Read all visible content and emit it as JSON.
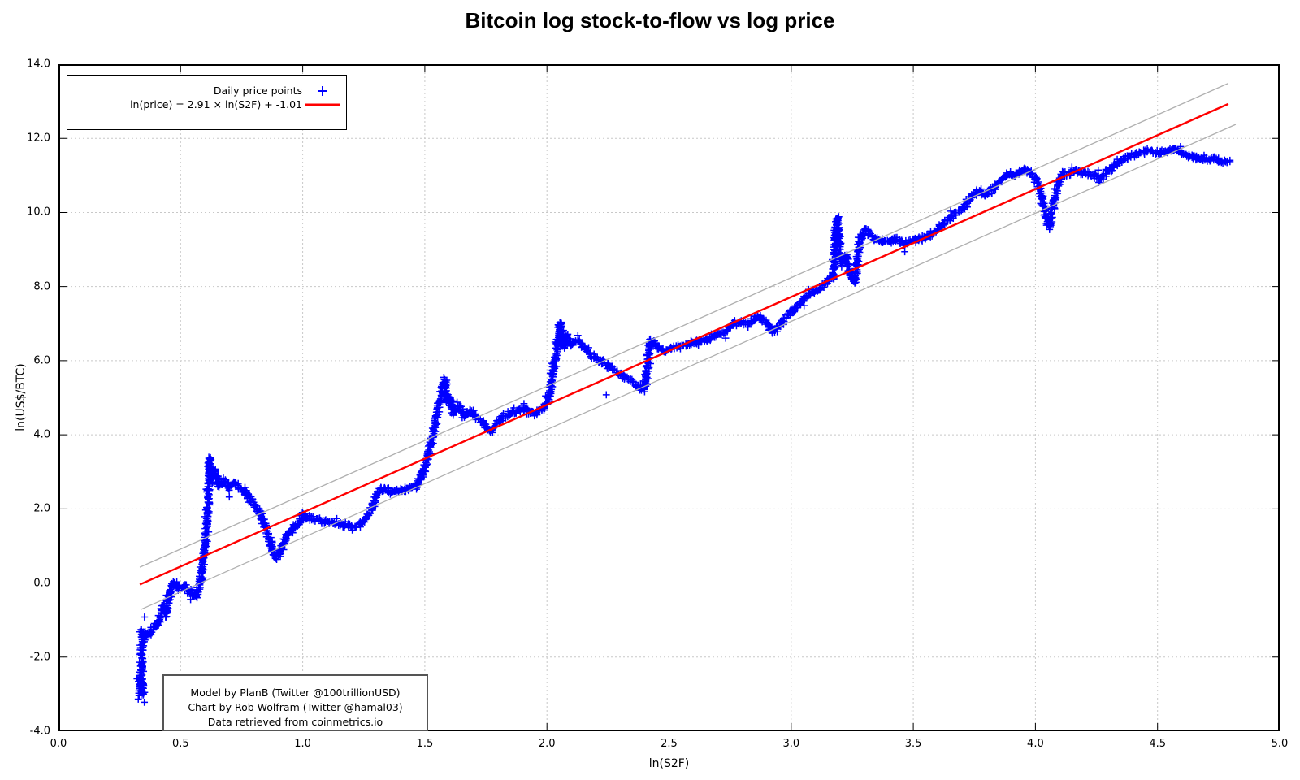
{
  "chart_data": {
    "type": "scatter",
    "title": "Bitcoin log stock-to-flow vs log price",
    "xlabel": "ln(S2F)",
    "ylabel": "ln(US$/BTC)",
    "xlim": [
      0.0,
      5.0
    ],
    "ylim": [
      -4.0,
      14.0
    ],
    "grid": true,
    "x_ticks": [
      {
        "v": 0.0,
        "label": "0.0"
      },
      {
        "v": 0.5,
        "label": "0.5"
      },
      {
        "v": 1.0,
        "label": "1.0"
      },
      {
        "v": 1.5,
        "label": "1.5"
      },
      {
        "v": 2.0,
        "label": "2.0"
      },
      {
        "v": 2.5,
        "label": "2.5"
      },
      {
        "v": 3.0,
        "label": "3.0"
      },
      {
        "v": 3.5,
        "label": "3.5"
      },
      {
        "v": 4.0,
        "label": "4.0"
      },
      {
        "v": 4.5,
        "label": "4.5"
      },
      {
        "v": 5.0,
        "label": "5.0"
      }
    ],
    "y_ticks": [
      {
        "v": -4.0,
        "label": "-4.0"
      },
      {
        "v": -2.0,
        "label": "-2.0"
      },
      {
        "v": 0.0,
        "label": "0.0"
      },
      {
        "v": 2.0,
        "label": "2.0"
      },
      {
        "v": 4.0,
        "label": "4.0"
      },
      {
        "v": 6.0,
        "label": "6.0"
      },
      {
        "v": 8.0,
        "label": "8.0"
      },
      {
        "v": 10.0,
        "label": "10.0"
      },
      {
        "v": 12.0,
        "label": "12.0"
      },
      {
        "v": 14.0,
        "label": "14.0"
      }
    ],
    "colors": {
      "points": "#0000ff",
      "fit_line": "#ff0000",
      "band_line": "#b0b0b0",
      "grid_line": "#c8c8c8",
      "border": "#000000"
    },
    "legend": {
      "position": "top-left",
      "items": [
        {
          "label": "Daily price points",
          "marker": "plus",
          "color": "#0000ff"
        },
        {
          "label": "ln(price) = 2.91 × ln(S2F) + -1.01",
          "marker": "line",
          "color": "#ff0000"
        }
      ]
    },
    "fit": {
      "slope": 2.91,
      "intercept": -1.01,
      "x_range": [
        0.333,
        4.79
      ]
    },
    "bands": [
      {
        "name": "upper",
        "slope": 2.93,
        "intercept": -0.55,
        "x_range": [
          0.333,
          4.79
        ]
      },
      {
        "name": "lower",
        "slope": 2.92,
        "intercept": -1.7,
        "x_range": [
          0.337,
          4.82
        ]
      }
    ],
    "series": [
      {
        "name": "Daily price points",
        "marker": "plus",
        "color": "#0000ff",
        "n_points": 2900,
        "path": [
          [
            0.325,
            -2.95,
            0.13
          ],
          [
            0.345,
            -3.05,
            0.12
          ],
          [
            0.33,
            -2.55,
            0.12
          ],
          [
            0.348,
            -2.85,
            0.11
          ],
          [
            0.335,
            -2.65,
            0.1
          ],
          [
            0.342,
            -2.2,
            0.09
          ],
          [
            0.338,
            -1.85,
            0.09
          ],
          [
            0.347,
            -1.55,
            0.09
          ],
          [
            0.34,
            -1.3,
            0.09
          ],
          [
            0.352,
            -1.45,
            0.08
          ],
          [
            0.372,
            -1.32,
            0.09
          ],
          [
            0.395,
            -1.2,
            0.1
          ],
          [
            0.415,
            -1.0,
            0.09
          ],
          [
            0.432,
            -0.62,
            0.08
          ],
          [
            0.44,
            -0.88,
            0.07
          ],
          [
            0.452,
            -0.35,
            0.07
          ],
          [
            0.468,
            0.02,
            0.08
          ],
          [
            0.488,
            -0.12,
            0.09
          ],
          [
            0.512,
            -0.05,
            0.09
          ],
          [
            0.538,
            -0.22,
            0.08
          ],
          [
            0.558,
            -0.38,
            0.07
          ],
          [
            0.575,
            -0.12,
            0.06
          ],
          [
            0.59,
            0.42,
            0.06
          ],
          [
            0.602,
            1.1,
            0.07
          ],
          [
            0.612,
            2.2,
            0.08
          ],
          [
            0.619,
            3.38,
            0.07
          ],
          [
            0.624,
            2.7,
            0.09
          ],
          [
            0.64,
            3.02,
            0.08
          ],
          [
            0.658,
            2.64,
            0.09
          ],
          [
            0.678,
            2.8,
            0.08
          ],
          [
            0.7,
            2.56,
            0.08
          ],
          [
            0.722,
            2.68,
            0.08
          ],
          [
            0.745,
            2.56,
            0.08
          ],
          [
            0.766,
            2.46,
            0.08
          ],
          [
            0.782,
            2.28,
            0.08
          ],
          [
            0.802,
            2.1,
            0.08
          ],
          [
            0.822,
            1.92,
            0.08
          ],
          [
            0.842,
            1.58,
            0.08
          ],
          [
            0.86,
            1.28,
            0.08
          ],
          [
            0.876,
            0.92,
            0.07
          ],
          [
            0.89,
            0.65,
            0.07
          ],
          [
            0.906,
            0.85,
            0.07
          ],
          [
            0.922,
            1.1,
            0.07
          ],
          [
            0.942,
            1.3,
            0.07
          ],
          [
            0.962,
            1.45,
            0.06
          ],
          [
            0.984,
            1.62,
            0.06
          ],
          [
            1.0,
            1.9,
            0.07
          ],
          [
            1.012,
            1.8,
            0.06
          ],
          [
            1.035,
            1.74,
            0.06
          ],
          [
            1.065,
            1.7,
            0.06
          ],
          [
            1.1,
            1.66,
            0.06
          ],
          [
            1.14,
            1.6,
            0.06
          ],
          [
            1.18,
            1.56,
            0.06
          ],
          [
            1.215,
            1.5,
            0.06
          ],
          [
            1.248,
            1.68,
            0.06
          ],
          [
            1.278,
            1.95,
            0.06
          ],
          [
            1.305,
            2.42,
            0.07
          ],
          [
            1.33,
            2.58,
            0.07
          ],
          [
            1.358,
            2.44,
            0.07
          ],
          [
            1.395,
            2.5,
            0.06
          ],
          [
            1.435,
            2.55,
            0.06
          ],
          [
            1.465,
            2.62,
            0.06
          ],
          [
            1.488,
            2.88,
            0.06
          ],
          [
            1.505,
            3.2,
            0.06
          ],
          [
            1.52,
            3.6,
            0.07
          ],
          [
            1.538,
            4.15,
            0.08
          ],
          [
            1.558,
            4.78,
            0.08
          ],
          [
            1.572,
            5.3,
            0.07
          ],
          [
            1.582,
            5.52,
            0.06
          ],
          [
            1.592,
            4.9,
            0.09
          ],
          [
            1.602,
            5.02,
            0.08
          ],
          [
            1.615,
            4.58,
            0.09
          ],
          [
            1.64,
            4.8,
            0.08
          ],
          [
            1.66,
            4.5,
            0.08
          ],
          [
            1.688,
            4.66,
            0.07
          ],
          [
            1.718,
            4.45,
            0.07
          ],
          [
            1.74,
            4.3,
            0.07
          ],
          [
            1.768,
            4.1,
            0.07
          ],
          [
            1.808,
            4.42,
            0.07
          ],
          [
            1.84,
            4.54,
            0.07
          ],
          [
            1.878,
            4.64,
            0.07
          ],
          [
            1.915,
            4.7,
            0.07
          ],
          [
            1.948,
            4.55,
            0.07
          ],
          [
            1.978,
            4.68,
            0.06
          ],
          [
            2.0,
            4.85,
            0.06
          ],
          [
            2.018,
            5.35,
            0.07
          ],
          [
            2.038,
            6.15,
            0.08
          ],
          [
            2.052,
            7.05,
            0.07
          ],
          [
            2.065,
            6.35,
            0.09
          ],
          [
            2.08,
            6.68,
            0.08
          ],
          [
            2.1,
            6.45,
            0.08
          ],
          [
            2.13,
            6.55,
            0.07
          ],
          [
            2.158,
            6.3,
            0.07
          ],
          [
            2.188,
            6.1,
            0.07
          ],
          [
            2.22,
            6.0,
            0.07
          ],
          [
            2.252,
            5.85,
            0.07
          ],
          [
            2.282,
            5.7,
            0.07
          ],
          [
            2.312,
            5.6,
            0.06
          ],
          [
            2.342,
            5.48,
            0.06
          ],
          [
            2.372,
            5.32,
            0.06
          ],
          [
            2.395,
            5.2,
            0.06
          ],
          [
            2.408,
            5.6,
            0.06
          ],
          [
            2.418,
            6.28,
            0.07
          ],
          [
            2.432,
            6.55,
            0.07
          ],
          [
            2.452,
            6.38,
            0.07
          ],
          [
            2.482,
            6.25,
            0.06
          ],
          [
            2.515,
            6.35,
            0.06
          ],
          [
            2.555,
            6.4,
            0.06
          ],
          [
            2.6,
            6.48,
            0.06
          ],
          [
            2.648,
            6.55,
            0.06
          ],
          [
            2.692,
            6.7,
            0.06
          ],
          [
            2.732,
            6.76,
            0.06
          ],
          [
            2.762,
            7.0,
            0.07
          ],
          [
            2.8,
            7.0,
            0.07
          ],
          [
            2.84,
            7.06,
            0.06
          ],
          [
            2.868,
            7.2,
            0.06
          ],
          [
            2.9,
            7.0,
            0.06
          ],
          [
            2.925,
            6.76,
            0.06
          ],
          [
            2.952,
            6.95,
            0.06
          ],
          [
            2.98,
            7.2,
            0.06
          ],
          [
            3.01,
            7.4,
            0.06
          ],
          [
            3.04,
            7.55,
            0.06
          ],
          [
            3.068,
            7.78,
            0.06
          ],
          [
            3.095,
            7.86,
            0.06
          ],
          [
            3.12,
            7.95,
            0.06
          ],
          [
            3.145,
            8.12,
            0.06
          ],
          [
            3.162,
            8.24,
            0.07
          ],
          [
            3.172,
            8.2,
            0.1
          ],
          [
            3.18,
            9.1,
            0.1
          ],
          [
            3.188,
            9.85,
            0.08
          ],
          [
            3.196,
            9.15,
            0.1
          ],
          [
            3.206,
            8.6,
            0.1
          ],
          [
            3.225,
            8.85,
            0.09
          ],
          [
            3.245,
            8.25,
            0.08
          ],
          [
            3.262,
            8.12,
            0.07
          ],
          [
            3.278,
            9.25,
            0.08
          ],
          [
            3.305,
            9.55,
            0.07
          ],
          [
            3.332,
            9.35,
            0.07
          ],
          [
            3.362,
            9.25,
            0.06
          ],
          [
            3.398,
            9.2,
            0.06
          ],
          [
            3.428,
            9.3,
            0.06
          ],
          [
            3.462,
            9.15,
            0.06
          ],
          [
            3.498,
            9.25,
            0.06
          ],
          [
            3.532,
            9.3,
            0.06
          ],
          [
            3.562,
            9.35,
            0.06
          ],
          [
            3.592,
            9.5,
            0.06
          ],
          [
            3.622,
            9.7,
            0.06
          ],
          [
            3.652,
            9.85,
            0.06
          ],
          [
            3.682,
            10.0,
            0.06
          ],
          [
            3.712,
            10.15,
            0.06
          ],
          [
            3.74,
            10.45,
            0.06
          ],
          [
            3.765,
            10.6,
            0.06
          ],
          [
            3.79,
            10.45,
            0.06
          ],
          [
            3.815,
            10.55,
            0.06
          ],
          [
            3.842,
            10.75,
            0.06
          ],
          [
            3.868,
            10.95,
            0.06
          ],
          [
            3.895,
            11.05,
            0.06
          ],
          [
            3.922,
            11.0,
            0.06
          ],
          [
            3.95,
            11.15,
            0.06
          ],
          [
            3.976,
            11.05,
            0.06
          ],
          [
            4.0,
            10.95,
            0.07
          ],
          [
            4.02,
            10.55,
            0.09
          ],
          [
            4.04,
            10.0,
            0.1
          ],
          [
            4.056,
            9.6,
            0.08
          ],
          [
            4.072,
            10.15,
            0.1
          ],
          [
            4.088,
            10.7,
            0.09
          ],
          [
            4.105,
            11.0,
            0.07
          ],
          [
            4.132,
            11.05,
            0.06
          ],
          [
            4.162,
            11.1,
            0.06
          ],
          [
            4.2,
            11.05,
            0.06
          ],
          [
            4.24,
            11.0,
            0.06
          ],
          [
            4.27,
            10.92,
            0.06
          ],
          [
            4.3,
            11.1,
            0.06
          ],
          [
            4.33,
            11.3,
            0.06
          ],
          [
            4.36,
            11.45,
            0.06
          ],
          [
            4.392,
            11.55,
            0.06
          ],
          [
            4.425,
            11.6,
            0.06
          ],
          [
            4.46,
            11.66,
            0.06
          ],
          [
            4.5,
            11.6,
            0.06
          ],
          [
            4.54,
            11.64,
            0.05
          ],
          [
            4.572,
            11.7,
            0.05
          ],
          [
            4.61,
            11.55,
            0.05
          ],
          [
            4.65,
            11.5,
            0.05
          ],
          [
            4.69,
            11.42,
            0.05
          ],
          [
            4.73,
            11.46,
            0.05
          ],
          [
            4.762,
            11.36,
            0.05
          ],
          [
            4.795,
            11.4,
            0.05
          ]
        ],
        "outliers": [
          [
            0.352,
            -0.92
          ],
          [
            2.243,
            5.08
          ]
        ]
      }
    ],
    "annotations": [
      "Model by PlanB (Twitter @100trillionUSD)",
      "Chart by Rob Wolfram (Twitter @hamal03)",
      "Data retrieved from coinmetrics.io"
    ]
  }
}
